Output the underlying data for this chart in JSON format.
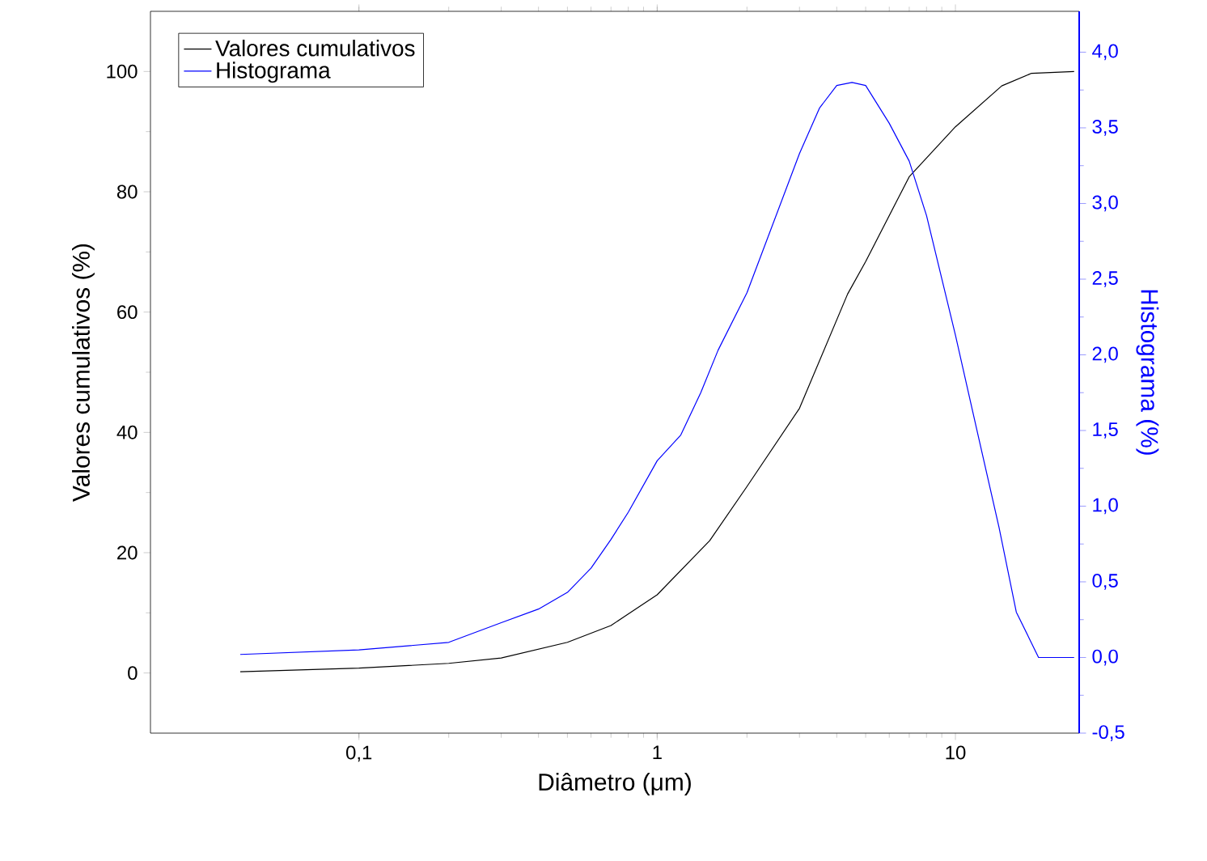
{
  "chart_data": {
    "type": "line",
    "xlabel": "Diâmetro (μm)",
    "ylabel": "Valores cumulativos (%)",
    "y2label": "Histograma (%)",
    "log": "x",
    "legend": "top left",
    "grid": false,
    "xlim": [
      0.02,
      26
    ],
    "xticks": [
      {
        "value": 0.1,
        "label": "0,1"
      },
      1,
      10
    ],
    "ylim": [
      -10,
      110
    ],
    "yticks": [
      0,
      20,
      40,
      60,
      80,
      100
    ],
    "y2lim": [
      -0.5,
      4.27
    ],
    "y2ticks": [
      {
        "value": -0.5,
        "label": "-0,5"
      },
      {
        "value": 0,
        "label": "0,0"
      },
      {
        "value": 0.5,
        "label": "0,5"
      },
      {
        "value": 1,
        "label": "1,0"
      },
      {
        "value": 1.5,
        "label": "1,5"
      },
      {
        "value": 2,
        "label": "2,0"
      },
      {
        "value": 2.5,
        "label": "2,5"
      },
      {
        "value": 3,
        "label": "3,0"
      },
      {
        "value": 3.5,
        "label": "3,5"
      },
      {
        "value": 4,
        "label": "4,0"
      }
    ],
    "series": [
      {
        "name": "Valores cumulativos",
        "color": "#000000",
        "x": [
          0.04,
          0.1,
          0.2,
          0.3,
          0.5,
          0.7,
          1,
          1.5,
          2,
          3,
          4.35,
          5,
          7,
          10,
          14.3,
          18,
          25
        ],
        "values": [
          0.2,
          0.8,
          1.6,
          2.5,
          5.1,
          7.9,
          13,
          22,
          31,
          44,
          63,
          68.4,
          82.5,
          90.8,
          97.6,
          99.7,
          100
        ]
      },
      {
        "name": "Histograma",
        "color": "#0000ff",
        "axis": "y2",
        "x": [
          0.04,
          0.1,
          0.2,
          0.3,
          0.4,
          0.5,
          0.6,
          0.7,
          0.8,
          1,
          1.2,
          1.4,
          1.6,
          2,
          3,
          3.5,
          4,
          4.5,
          5,
          6,
          7,
          8,
          10,
          12,
          14,
          16,
          19,
          25
        ],
        "values": [
          0.02,
          0.05,
          0.1,
          0.23,
          0.32,
          0.43,
          0.59,
          0.78,
          0.96,
          1.3,
          1.47,
          1.75,
          2.03,
          2.41,
          3.33,
          3.63,
          3.78,
          3.8,
          3.78,
          3.53,
          3.28,
          2.92,
          2.13,
          1.44,
          0.86,
          0.3,
          0.0,
          0.0
        ]
      }
    ]
  }
}
